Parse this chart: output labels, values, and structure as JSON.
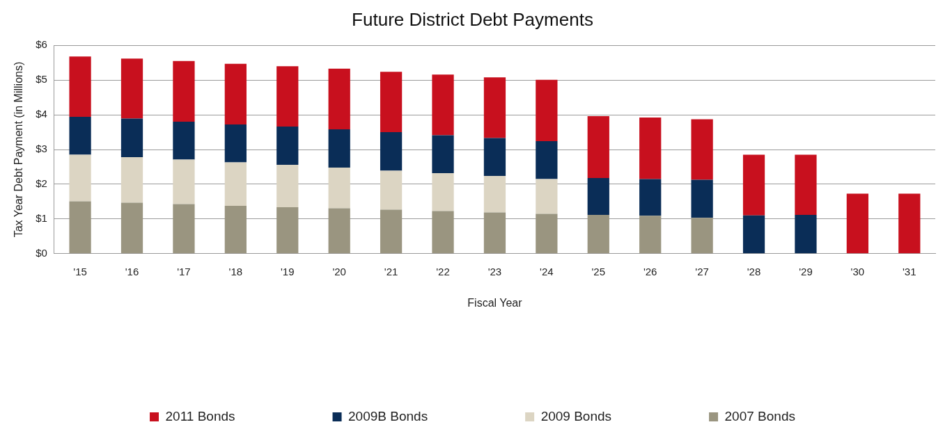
{
  "chart_data": {
    "type": "bar",
    "title": "Future District Debt Payments",
    "xlabel": "Fiscal Year",
    "ylabel": "Tax Year Debt Payment (in Millions)",
    "categories": [
      "'15",
      "'16",
      "'17",
      "'18",
      "'19",
      "'20",
      "'21",
      "'22",
      "'23",
      "'24",
      "'25",
      "'26",
      "'27",
      "'28",
      "'29",
      "'30",
      "'31"
    ],
    "stacked": true,
    "grid": "y",
    "legend": "bottom",
    "ylim": [
      0,
      6
    ],
    "yticks": [
      {
        "value": 0,
        "label": "$0"
      },
      {
        "value": 1,
        "label": "$1"
      },
      {
        "value": 2,
        "label": "$2"
      },
      {
        "value": 3,
        "label": "$3"
      },
      {
        "value": 4,
        "label": "$4"
      },
      {
        "value": 5,
        "label": "$5"
      },
      {
        "value": 6,
        "label": "$6"
      }
    ],
    "series": [
      {
        "name": "2007 Bonds",
        "color": "#9a9580",
        "values": [
          1.51,
          1.47,
          1.43,
          1.38,
          1.34,
          1.31,
          1.27,
          1.23,
          1.19,
          1.15,
          1.12,
          1.09,
          1.03,
          0,
          0,
          0,
          0
        ]
      },
      {
        "name": "2009 Bonds",
        "color": "#dcd5c3",
        "values": [
          1.34,
          1.31,
          1.28,
          1.25,
          1.22,
          1.17,
          1.12,
          1.09,
          1.05,
          1.0,
          0,
          0,
          0,
          0,
          0,
          0,
          0
        ]
      },
      {
        "name": "2009B Bonds",
        "color": "#0a2d57",
        "values": [
          1.09,
          1.11,
          1.09,
          1.09,
          1.1,
          1.1,
          1.11,
          1.09,
          1.09,
          1.09,
          1.06,
          1.06,
          1.1,
          1.1,
          1.12,
          0,
          0
        ]
      },
      {
        "name": "2011 Bonds",
        "color": "#c8101e",
        "values": [
          1.74,
          1.73,
          1.75,
          1.75,
          1.74,
          1.75,
          1.74,
          1.75,
          1.75,
          1.77,
          1.78,
          1.77,
          1.74,
          1.75,
          1.73,
          1.73,
          1.73
        ]
      }
    ]
  }
}
